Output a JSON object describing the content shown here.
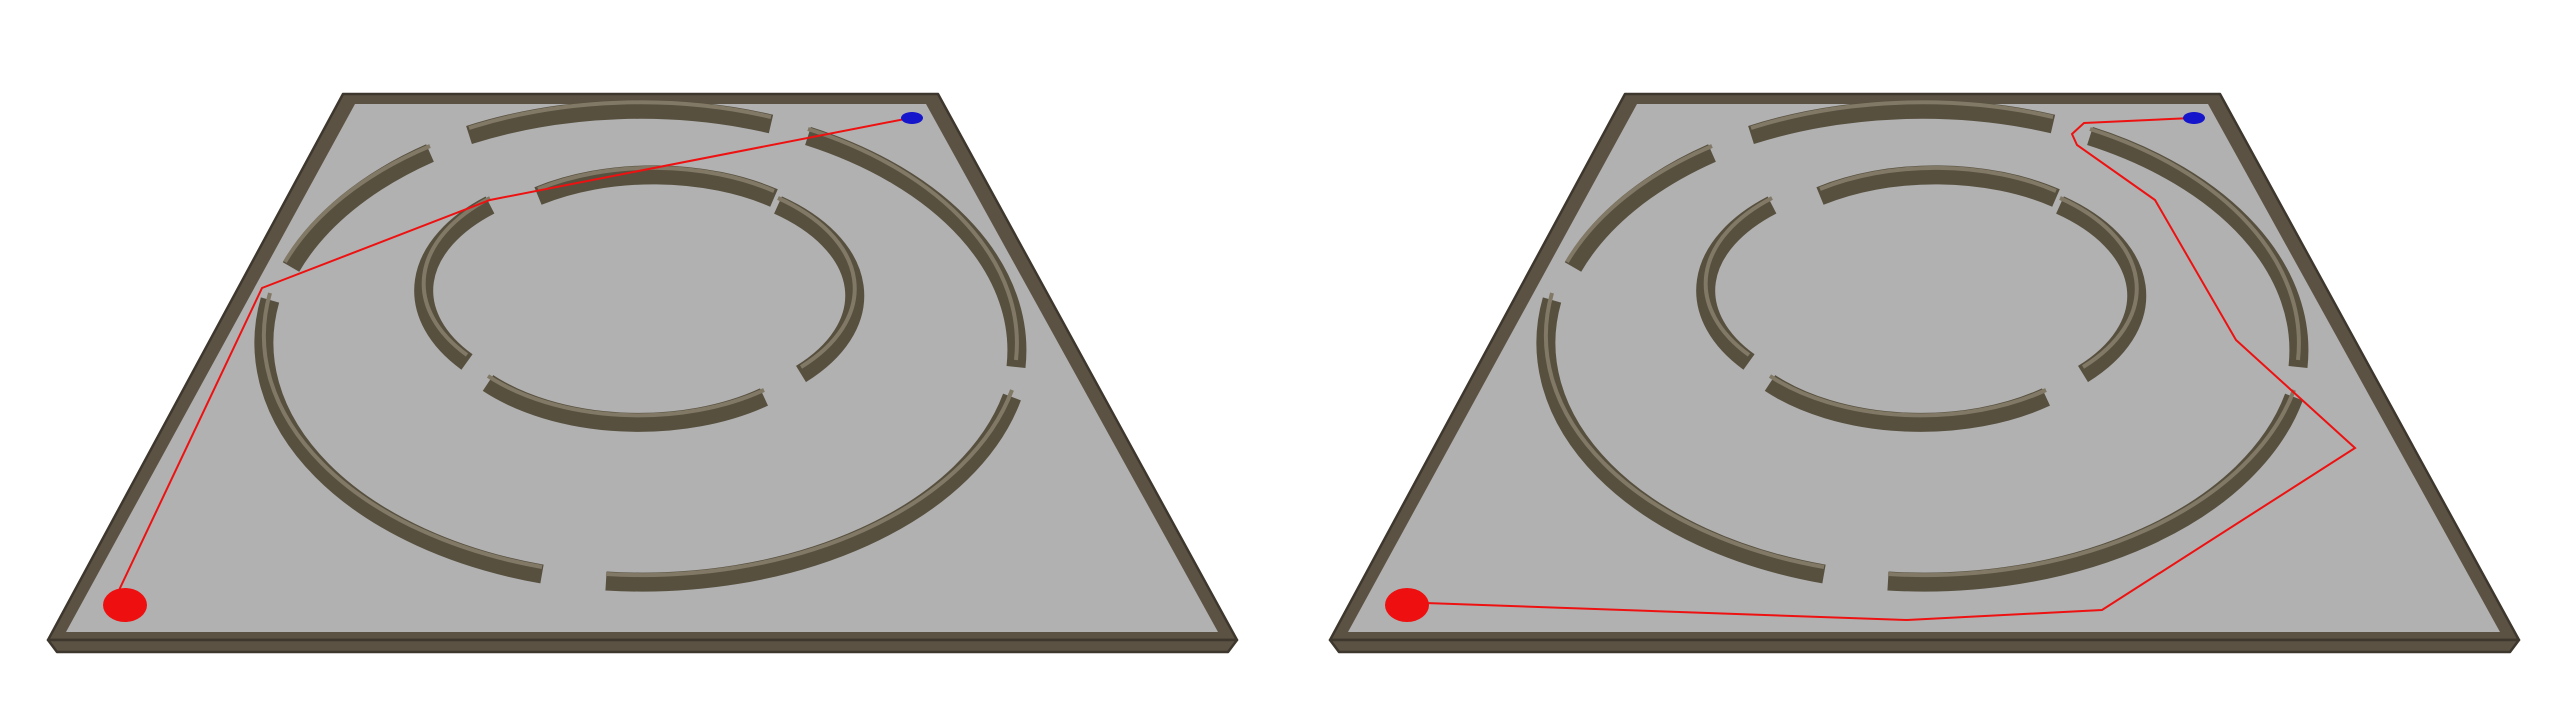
{
  "colors": {
    "background": "#ffffff",
    "floor": "#b1b1b1",
    "wall": "#5b5243",
    "path": "#ee1111",
    "start": "#ee1010",
    "goal": "#1515cc"
  },
  "panels": [
    {
      "name": "left-maze-panel",
      "start_marker": "red-start-disc",
      "goal_marker": "blue-goal-disc",
      "path": "planned-path-direct"
    },
    {
      "name": "right-maze-panel",
      "start_marker": "red-start-disc",
      "goal_marker": "blue-goal-disc",
      "path": "planned-path-detour"
    }
  ]
}
